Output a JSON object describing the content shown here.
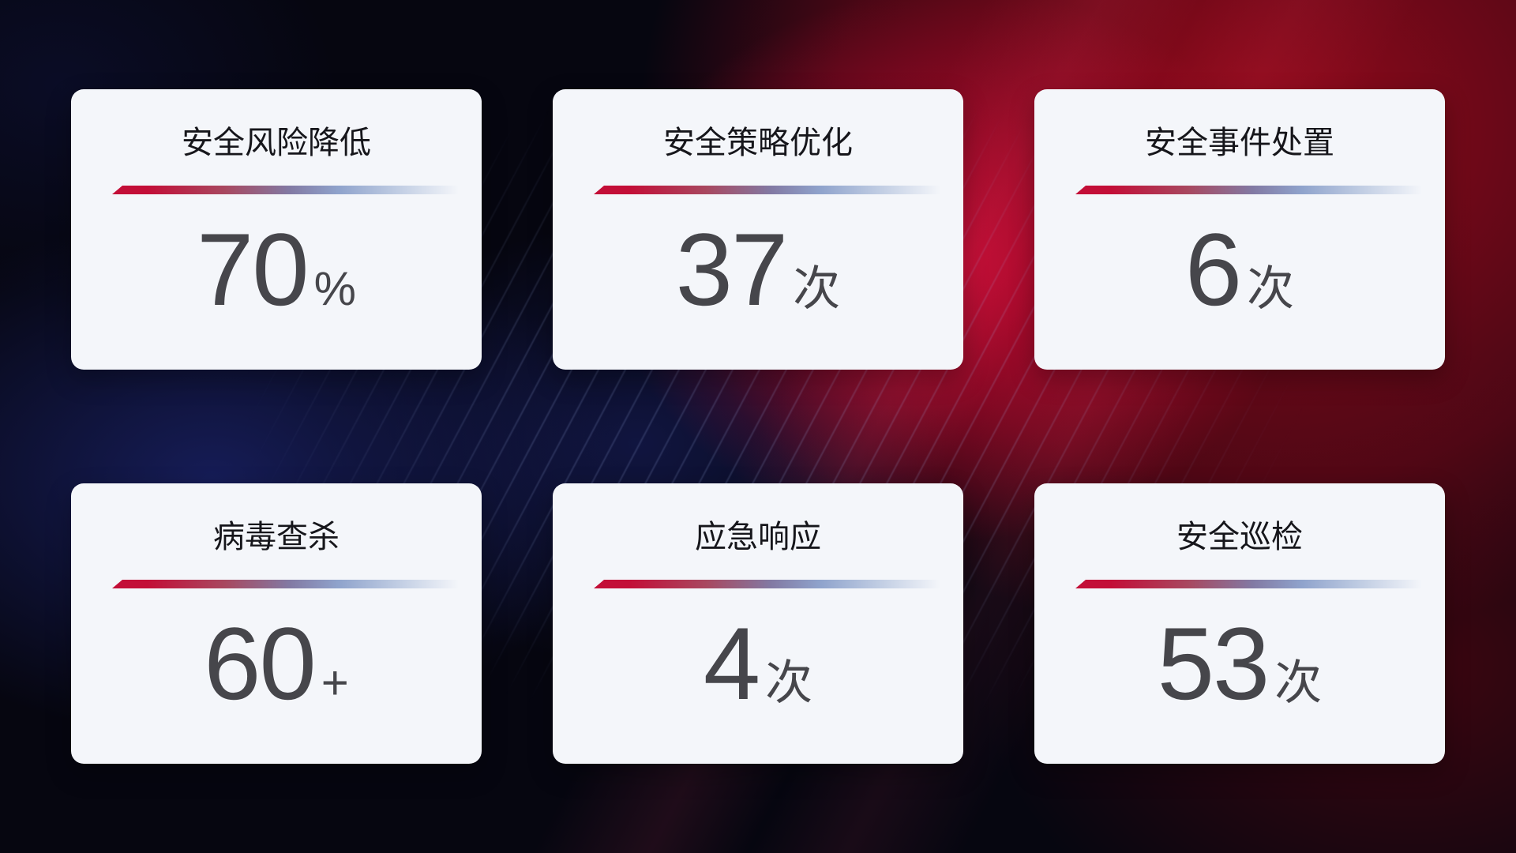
{
  "theme": {
    "card_background": "#F4F6FA",
    "title_color": "#16161B",
    "value_color": "#46464B",
    "divider_red": "#C30E37",
    "divider_blue": "#8FA3CC",
    "background_navy": "#171E5C",
    "background_red": "#9A0A1C",
    "background_crimson": "#C60A34"
  },
  "cards": [
    {
      "title": "安全风险降低",
      "value": "70",
      "unit": "%"
    },
    {
      "title": "安全策略优化",
      "value": "37",
      "unit": "次"
    },
    {
      "title": "安全事件处置",
      "value": "6",
      "unit": "次"
    },
    {
      "title": "病毒查杀",
      "value": "60",
      "unit": "+"
    },
    {
      "title": "应急响应",
      "value": "4",
      "unit": "次"
    },
    {
      "title": "安全巡检",
      "value": "53",
      "unit": "次"
    }
  ]
}
